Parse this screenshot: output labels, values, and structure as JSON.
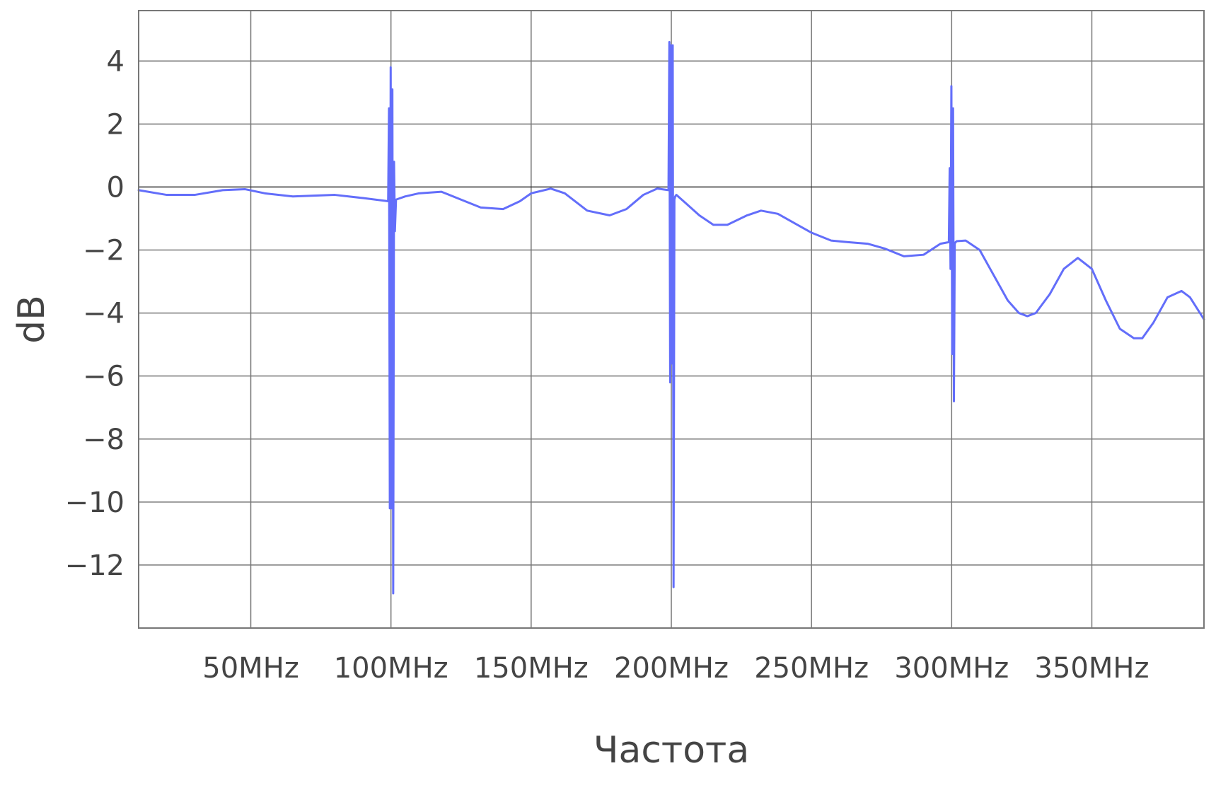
{
  "chart_data": {
    "type": "line",
    "title": "",
    "xlabel": "Частота",
    "ylabel": "dB",
    "x_unit": "MHz",
    "xlim": [
      10,
      390
    ],
    "ylim": [
      -14,
      5.6
    ],
    "x_ticks": [
      {
        "value": 50,
        "label": "50MHz"
      },
      {
        "value": 100,
        "label": "100MHz"
      },
      {
        "value": 150,
        "label": "150MHz"
      },
      {
        "value": 200,
        "label": "200MHz"
      },
      {
        "value": 250,
        "label": "250MHz"
      },
      {
        "value": 300,
        "label": "300MHz"
      },
      {
        "value": 350,
        "label": "350MHz"
      }
    ],
    "y_ticks": [
      {
        "value": 4,
        "label": "4"
      },
      {
        "value": 2,
        "label": "2"
      },
      {
        "value": 0,
        "label": "0"
      },
      {
        "value": -2,
        "label": "−2"
      },
      {
        "value": -4,
        "label": "−4"
      },
      {
        "value": -6,
        "label": "−6"
      },
      {
        "value": -8,
        "label": "−8"
      },
      {
        "value": -10,
        "label": "−10"
      },
      {
        "value": -12,
        "label": "−12"
      }
    ],
    "grid": true,
    "zero_line": true,
    "legend": "none",
    "series": [
      {
        "color": "#636efa",
        "x": [
          10,
          20,
          30,
          40,
          48,
          55,
          65,
          80,
          90,
          99,
          99.3,
          99.6,
          99.9,
          100.2,
          100.5,
          100.8,
          101.1,
          101.4,
          101.8,
          105,
          110,
          118,
          125,
          132,
          140,
          146,
          150,
          157,
          162,
          170,
          178,
          184,
          190,
          195,
          199,
          199.3,
          199.6,
          199.9,
          200.2,
          200.5,
          200.8,
          201.1,
          201.4,
          201.8,
          205,
          210,
          215,
          220,
          227,
          232,
          238,
          245,
          250,
          257,
          263,
          270,
          276,
          283,
          290,
          296,
          299,
          299.3,
          299.6,
          299.9,
          300.2,
          300.5,
          300.8,
          301.1,
          301.4,
          301.8,
          305,
          310,
          315,
          320,
          324,
          327,
          330,
          335,
          340,
          345,
          350,
          355,
          360,
          365,
          368,
          372,
          377,
          382,
          385,
          390
        ],
        "y": [
          -0.1,
          -0.25,
          -0.25,
          -0.1,
          -0.07,
          -0.2,
          -0.3,
          -0.25,
          -0.35,
          -0.45,
          2.5,
          -10.2,
          3.8,
          -10.2,
          3.1,
          -12.9,
          0.8,
          -1.4,
          -0.4,
          -0.3,
          -0.2,
          -0.15,
          -0.4,
          -0.65,
          -0.7,
          -0.45,
          -0.2,
          -0.05,
          -0.2,
          -0.75,
          -0.9,
          -0.7,
          -0.25,
          -0.05,
          -0.1,
          4.6,
          -6.2,
          4.5,
          -5.6,
          4.5,
          -12.7,
          -0.4,
          -0.3,
          -0.25,
          -0.5,
          -0.9,
          -1.2,
          -1.2,
          -0.9,
          -0.75,
          -0.85,
          -1.2,
          -1.45,
          -1.7,
          -1.75,
          -1.8,
          -1.95,
          -2.2,
          -2.15,
          -1.8,
          -1.75,
          0.6,
          -2.6,
          3.2,
          -5.3,
          2.5,
          -6.8,
          -1.8,
          -1.75,
          -1.72,
          -1.7,
          -2.0,
          -2.8,
          -3.6,
          -4.0,
          -4.1,
          -4.0,
          -3.4,
          -2.6,
          -2.25,
          -2.6,
          -3.6,
          -4.5,
          -4.8,
          -4.8,
          -4.3,
          -3.5,
          -3.3,
          -3.5,
          -4.2
        ]
      }
    ]
  }
}
